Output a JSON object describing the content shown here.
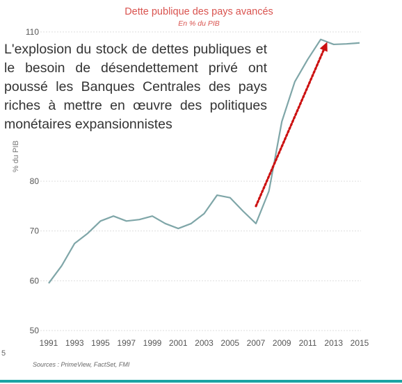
{
  "page_number": "5",
  "annotation": "L'explosion du stock de dettes publiques et le besoin de désendettement privé ont poussé les Banques Centrales des pays riches à mettre en œuvre des politiques monétaires expansionnistes",
  "source": "Sources : PrimeView, FactSet, FMI",
  "colors": {
    "line": "#7fa6a8",
    "arrow": "#cc1111",
    "title": "#d9534f",
    "grid": "#dddddd",
    "rule": "#1aa3a3"
  },
  "chart_data": {
    "type": "line",
    "title": "Dette publique des pays avancés",
    "subtitle": "En % du PIB",
    "xlabel": "",
    "ylabel": "% du PIB",
    "xlim": [
      1991,
      2015
    ],
    "ylim": [
      50,
      110
    ],
    "yticks": [
      50,
      60,
      70,
      80,
      110
    ],
    "xticks": [
      "1991",
      "1993",
      "1995",
      "1997",
      "1999",
      "2001",
      "2003",
      "2005",
      "2007",
      "2009",
      "2011",
      "2013",
      "2015"
    ],
    "grid": true,
    "series": [
      {
        "x": [
          1991,
          1992,
          1993,
          1994,
          1995,
          1996,
          1997,
          1998,
          1999,
          2000,
          2001,
          2002,
          2003,
          2004,
          2005,
          2006,
          2007,
          2008,
          2009,
          2010,
          2011,
          2012,
          2013,
          2014,
          2015
        ],
        "values": [
          59.5,
          63,
          67.5,
          69.5,
          72,
          73,
          72,
          72.3,
          73,
          71.5,
          70.5,
          71.5,
          73.5,
          77.2,
          76.7,
          74,
          71.5,
          78,
          92,
          100,
          104.5,
          108.5,
          107.5,
          107.6,
          107.8
        ]
      }
    ],
    "annotation_arrow": {
      "from": [
        2007,
        75
      ],
      "to": [
        2012.5,
        108
      ]
    }
  }
}
